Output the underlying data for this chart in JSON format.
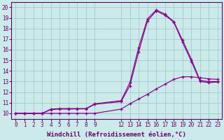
{
  "background_color": "#cceaea",
  "grid_color": "#a0cccc",
  "line_color": "#880088",
  "xlabel": "Windchill (Refroidissement éolien,°C)",
  "xlabel_fontsize": 6.5,
  "xlim": [
    -0.5,
    23.5
  ],
  "ylim": [
    9.5,
    20.5
  ],
  "xticks": [
    0,
    1,
    2,
    3,
    4,
    5,
    6,
    7,
    8,
    9,
    12,
    13,
    14,
    15,
    16,
    17,
    18,
    19,
    20,
    21,
    22,
    23
  ],
  "yticks": [
    10,
    11,
    12,
    13,
    14,
    15,
    16,
    17,
    18,
    19,
    20
  ],
  "tick_fontsize": 5.5,
  "curve1_x": [
    0,
    1,
    2,
    3,
    4,
    5,
    6,
    7,
    8,
    9,
    12,
    13,
    14,
    15,
    16,
    17,
    18,
    19,
    20,
    21,
    22,
    23
  ],
  "curve1_y": [
    10.0,
    10.0,
    10.0,
    10.0,
    10.4,
    10.45,
    10.45,
    10.45,
    10.45,
    10.9,
    11.2,
    12.9,
    16.2,
    18.9,
    19.75,
    19.35,
    18.65,
    16.9,
    15.1,
    13.1,
    13.0,
    13.0
  ],
  "curve2_x": [
    0,
    1,
    2,
    3,
    4,
    5,
    6,
    7,
    8,
    9,
    12,
    13,
    14,
    15,
    16,
    17,
    18,
    19,
    20,
    21,
    22,
    23
  ],
  "curve2_y": [
    10.0,
    10.0,
    10.0,
    10.0,
    10.35,
    10.4,
    10.4,
    10.42,
    10.42,
    10.85,
    11.1,
    12.6,
    15.8,
    18.7,
    19.65,
    19.25,
    18.6,
    16.7,
    14.9,
    13.0,
    12.9,
    12.95
  ],
  "curve3_x": [
    0,
    1,
    2,
    3,
    4,
    5,
    6,
    7,
    8,
    9,
    12,
    13,
    14,
    15,
    16,
    17,
    18,
    19,
    20,
    21,
    22,
    23
  ],
  "curve3_y": [
    10.0,
    10.0,
    10.0,
    10.0,
    10.0,
    10.0,
    10.0,
    10.0,
    10.0,
    10.0,
    10.4,
    10.9,
    11.35,
    11.8,
    12.3,
    12.75,
    13.2,
    13.45,
    13.45,
    13.35,
    13.25,
    13.2
  ]
}
